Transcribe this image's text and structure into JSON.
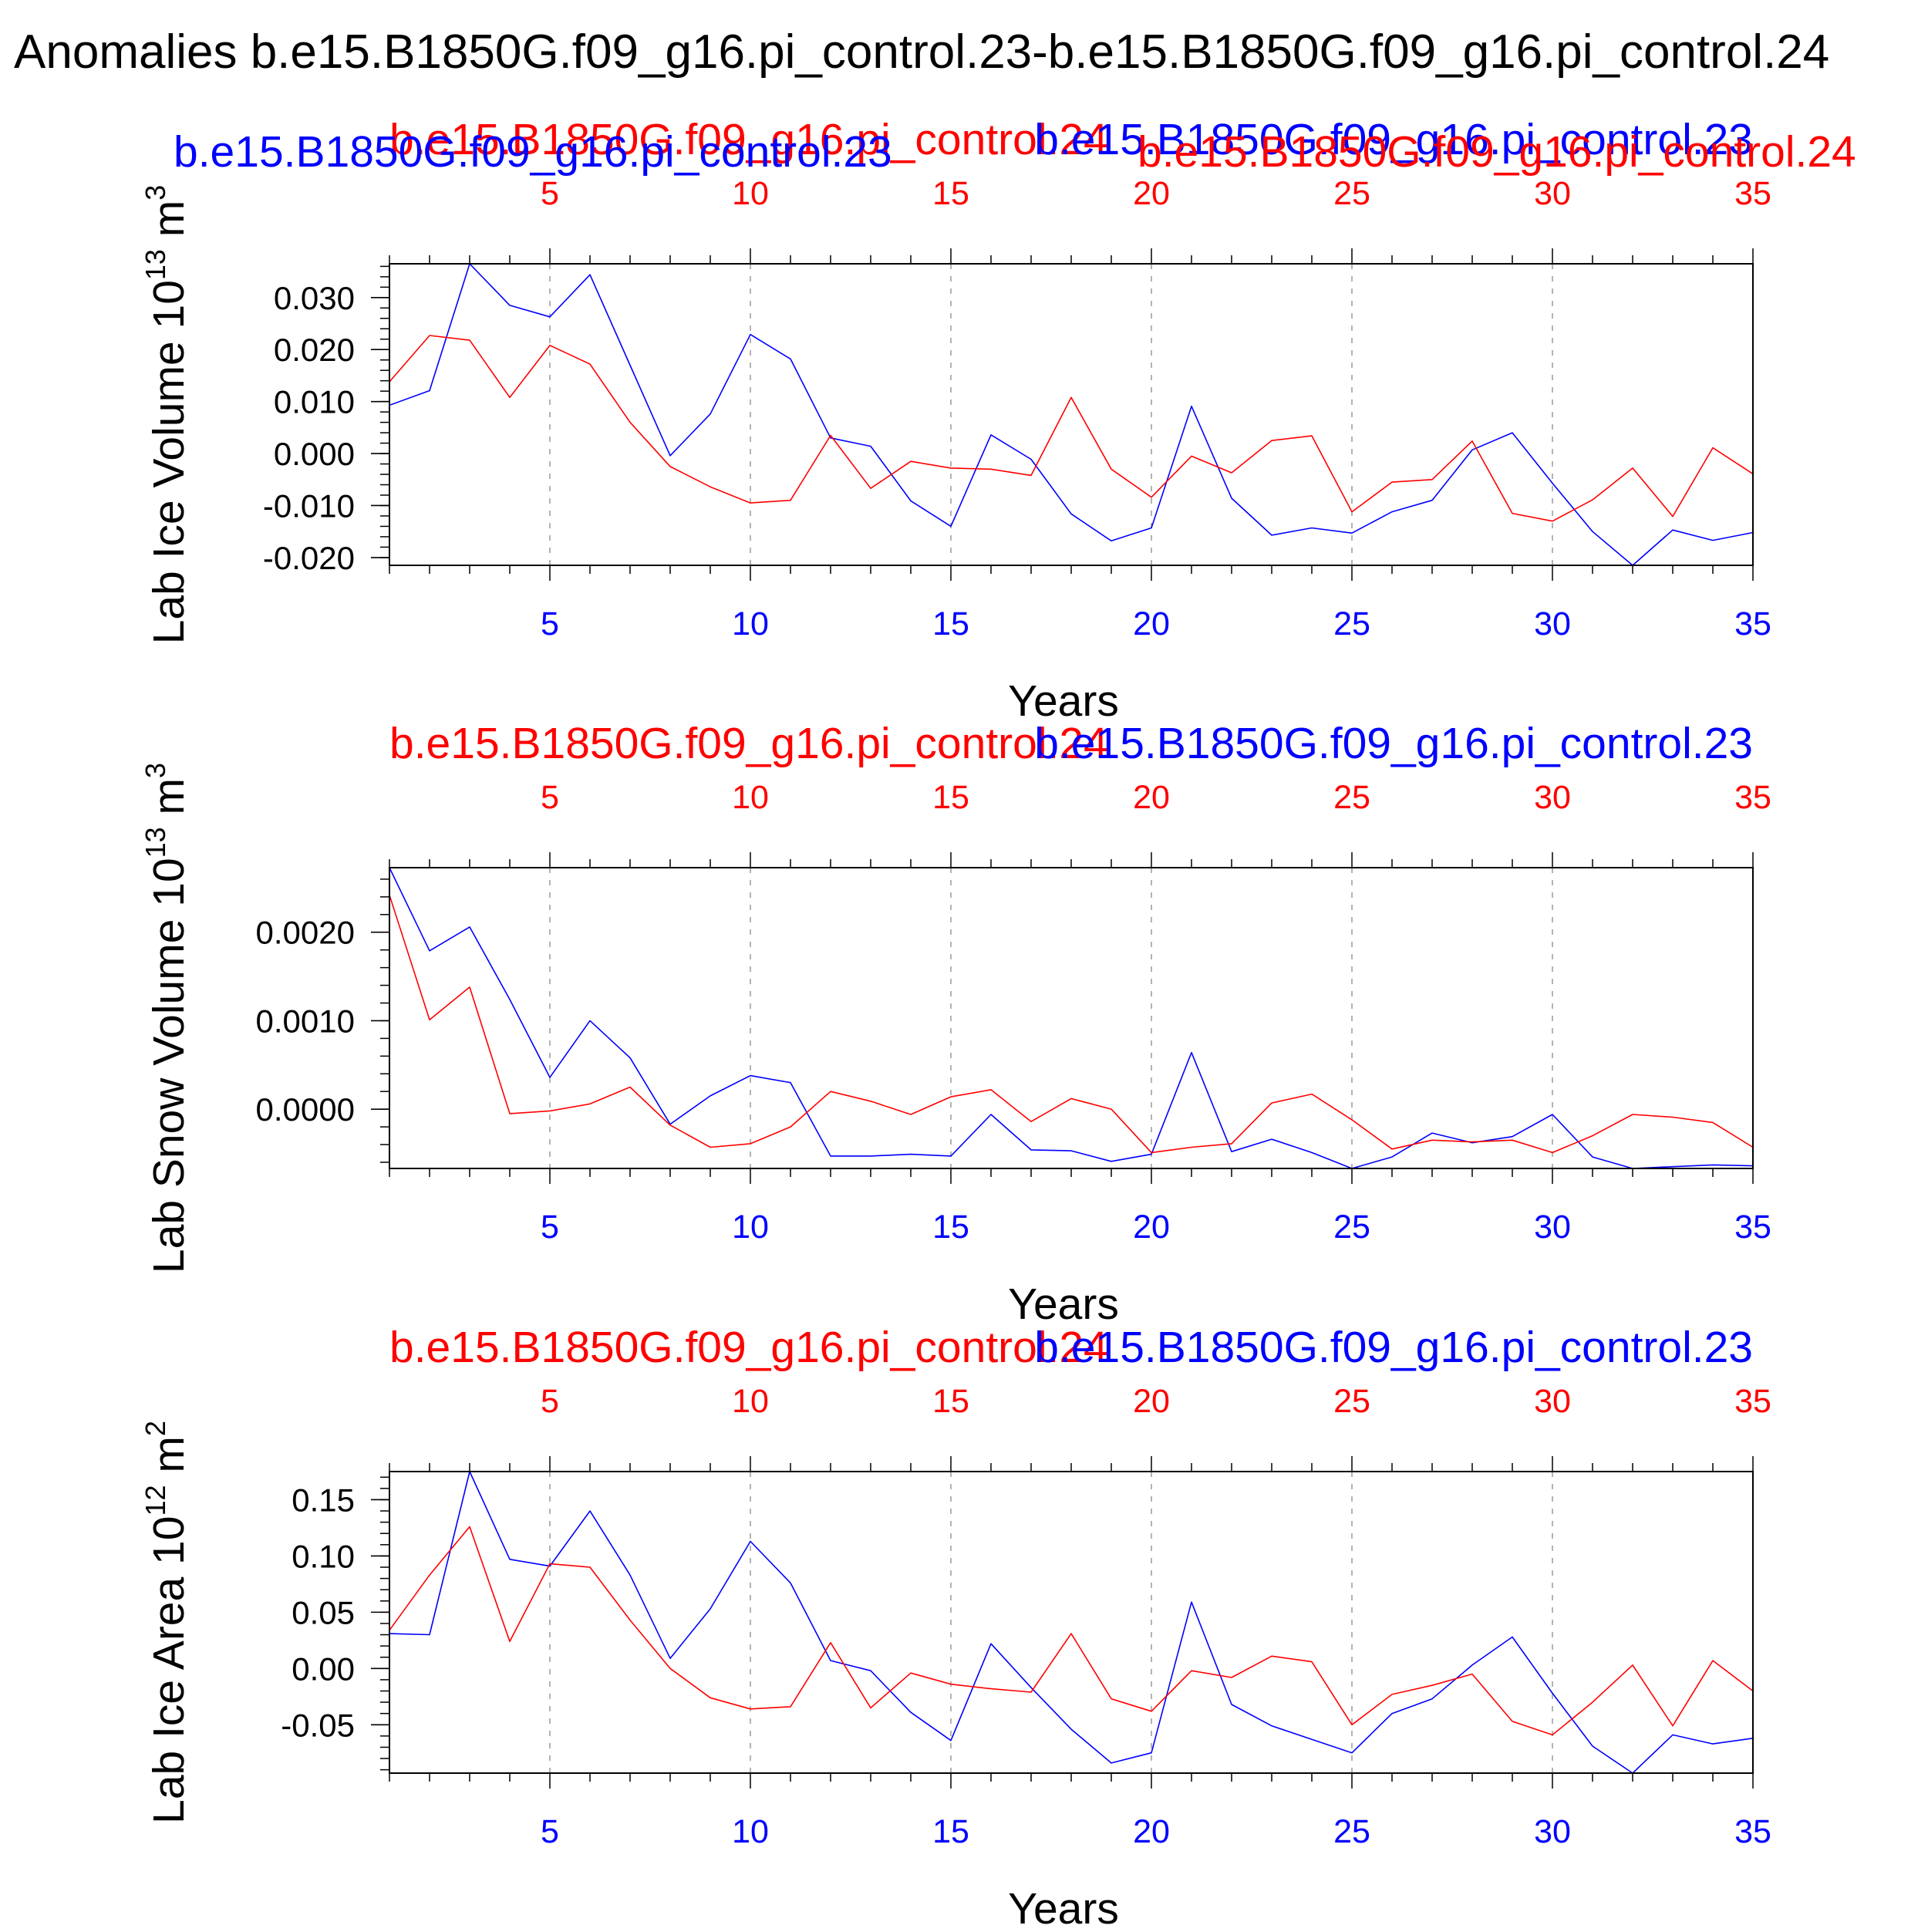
{
  "page_title": "Anomalies b.e15.B1850G.f09_g16.pi_control.23-b.e15.B1850G.f09_g16.pi_control.24",
  "series_colors": {
    "run23": "#0000ff",
    "run24": "#ff0000"
  },
  "chart_data": [
    {
      "type": "line",
      "ylabel": "Lab Ice Volume 10",
      "ylabel_exp": "13",
      "ylabel_unit": " m",
      "ylabel_unit_exp": "3",
      "xlabel": "Years",
      "top_label_left": "b.e15.B1850G.f09_g16.pi_control.24",
      "top_label_right": "b.e15.B1850G.f09_g16.pi_control.23",
      "xlim": [
        1,
        35
      ],
      "ylim": [
        -0.0215,
        0.0365
      ],
      "x_ticks": [
        5,
        10,
        15,
        20,
        25,
        30,
        35
      ],
      "x_tick_labels": [
        "5",
        "10",
        "15",
        "20",
        "25",
        "30",
        "35"
      ],
      "y_ticks": [
        0.03,
        0.02,
        0.01,
        0.0,
        -0.01,
        -0.02
      ],
      "y_tick_labels": [
        "0.030",
        "0.020",
        "0.010",
        "0.000",
        "-0.010",
        "-0.020"
      ],
      "y_minor_step": 0.002,
      "x": [
        1,
        2,
        3,
        4,
        5,
        6,
        7,
        8,
        9,
        10,
        11,
        12,
        13,
        14,
        15,
        16,
        17,
        18,
        19,
        20,
        21,
        22,
        23,
        24,
        25,
        26,
        27,
        28,
        29,
        30,
        31,
        32,
        33,
        34,
        35
      ],
      "series": [
        {
          "name": "b.e15.B1850G.f09_g16.pi_control.23",
          "color": "#0000ff",
          "values": [
            0.0093,
            0.0121,
            0.0365,
            0.0285,
            0.0263,
            0.0344,
            0.017,
            -0.0004,
            0.0076,
            0.0229,
            0.0182,
            0.003,
            0.0014,
            -0.0091,
            -0.014,
            0.0036,
            -0.0011,
            -0.0116,
            -0.0168,
            -0.0143,
            0.0091,
            -0.0086,
            -0.0157,
            -0.0143,
            -0.0153,
            -0.0112,
            -0.009,
            0.0007,
            0.004,
            -0.0057,
            -0.015,
            -0.0215,
            -0.0147,
            -0.0167,
            -0.0152
          ]
        },
        {
          "name": "b.e15.B1850G.f09_g16.pi_control.24",
          "color": "#ff0000",
          "values": [
            0.0138,
            0.0227,
            0.0218,
            0.0108,
            0.0208,
            0.0172,
            0.006,
            -0.0025,
            -0.0064,
            -0.0095,
            -0.009,
            0.0035,
            -0.0067,
            -0.0015,
            -0.0028,
            -0.003,
            -0.0042,
            0.0108,
            -0.003,
            -0.0084,
            -0.0005,
            -0.0037,
            0.0025,
            0.0034,
            -0.0112,
            -0.0055,
            -0.005,
            0.0024,
            -0.0115,
            -0.013,
            -0.0089,
            -0.0028,
            -0.0121,
            0.0011,
            -0.0039
          ]
        }
      ]
    },
    {
      "type": "line",
      "ylabel": "Lab Snow Volume 10",
      "ylabel_exp": "13",
      "ylabel_unit": " m",
      "ylabel_unit_exp": "3",
      "xlabel": "Years",
      "top_label_left": "b.e15.B1850G.f09_g16.pi_control.24",
      "top_label_right": "b.e15.B1850G.f09_g16.pi_control.23",
      "xlim": [
        1,
        35
      ],
      "ylim": [
        -0.00067,
        0.00273
      ],
      "x_ticks": [
        5,
        10,
        15,
        20,
        25,
        30,
        35
      ],
      "x_tick_labels": [
        "5",
        "10",
        "15",
        "20",
        "25",
        "30",
        "35"
      ],
      "y_ticks": [
        0.002,
        0.001,
        0.0
      ],
      "y_tick_labels": [
        "0.0020",
        "0.0010",
        "0.0000"
      ],
      "y_minor_step": 0.0002,
      "x": [
        1,
        2,
        3,
        4,
        5,
        6,
        7,
        8,
        9,
        10,
        11,
        12,
        13,
        14,
        15,
        16,
        17,
        18,
        19,
        20,
        21,
        22,
        23,
        24,
        25,
        26,
        27,
        28,
        29,
        30,
        31,
        32,
        33,
        34,
        35
      ],
      "series": [
        {
          "name": "b.e15.B1850G.f09_g16.pi_control.23",
          "color": "#0000ff",
          "values": [
            0.00273,
            0.00179,
            0.00206,
            0.00124,
            0.00036,
            0.001,
            0.00058,
            -0.00017,
            0.00015,
            0.00038,
            0.0003,
            -0.00053,
            -0.00053,
            -0.00051,
            -0.00053,
            -6e-05,
            -0.00046,
            -0.00047,
            -0.00059,
            -0.00051,
            0.00064,
            -0.00048,
            -0.00034,
            -0.00049,
            -0.00067,
            -0.00054,
            -0.00027,
            -0.00038,
            -0.00031,
            -6e-05,
            -0.00054,
            -0.00067,
            -0.00065,
            -0.00063,
            -0.00064
          ]
        },
        {
          "name": "b.e15.B1850G.f09_g16.pi_control.24",
          "color": "#ff0000",
          "values": [
            0.00242,
            0.00101,
            0.00138,
            -5e-05,
            -2e-05,
            6e-05,
            0.00025,
            -0.00018,
            -0.00043,
            -0.00039,
            -0.0002,
            0.0002,
            9e-05,
            -6e-05,
            0.00014,
            0.00022,
            -0.00014,
            0.00012,
            0.0,
            -0.00049,
            -0.00043,
            -0.00039,
            7e-05,
            0.00017,
            -0.00012,
            -0.00045,
            -0.00035,
            -0.00037,
            -0.00035,
            -0.00049,
            -0.0003,
            -6e-05,
            -9e-05,
            -0.00015,
            -0.00043
          ]
        }
      ]
    },
    {
      "type": "line",
      "ylabel": "Lab Ice Area 10",
      "ylabel_exp": "12",
      "ylabel_unit": " m",
      "ylabel_unit_exp": "2",
      "xlabel": "Years",
      "top_label_left": "b.e15.B1850G.f09_g16.pi_control.24",
      "top_label_right": "b.e15.B1850G.f09_g16.pi_control.23",
      "xlim": [
        1,
        35
      ],
      "ylim": [
        -0.093,
        0.175
      ],
      "x_ticks": [
        5,
        10,
        15,
        20,
        25,
        30,
        35
      ],
      "x_tick_labels": [
        "5",
        "10",
        "15",
        "20",
        "25",
        "30",
        "35"
      ],
      "y_ticks": [
        0.15,
        0.1,
        0.05,
        0.0,
        -0.05
      ],
      "y_tick_labels": [
        "0.15",
        "0.10",
        "0.05",
        "0.00",
        "-0.05"
      ],
      "y_minor_step": 0.01,
      "x": [
        1,
        2,
        3,
        4,
        5,
        6,
        7,
        8,
        9,
        10,
        11,
        12,
        13,
        14,
        15,
        16,
        17,
        18,
        19,
        20,
        21,
        22,
        23,
        24,
        25,
        26,
        27,
        28,
        29,
        30,
        31,
        32,
        33,
        34,
        35
      ],
      "series": [
        {
          "name": "b.e15.B1850G.f09_g16.pi_control.23",
          "color": "#0000ff",
          "values": [
            0.031,
            0.03,
            0.175,
            0.097,
            0.091,
            0.14,
            0.083,
            0.009,
            0.053,
            0.113,
            0.076,
            0.007,
            -0.002,
            -0.039,
            -0.064,
            0.022,
            -0.017,
            -0.054,
            -0.084,
            -0.075,
            0.059,
            -0.032,
            -0.051,
            -0.063,
            -0.075,
            -0.04,
            -0.027,
            0.003,
            0.028,
            -0.022,
            -0.069,
            -0.093,
            -0.059,
            -0.067,
            -0.062
          ]
        },
        {
          "name": "b.e15.B1850G.f09_g16.pi_control.24",
          "color": "#ff0000",
          "values": [
            0.034,
            0.083,
            0.126,
            0.024,
            0.093,
            0.09,
            0.043,
            0.0,
            -0.026,
            -0.036,
            -0.034,
            0.023,
            -0.035,
            -0.004,
            -0.014,
            -0.018,
            -0.021,
            0.031,
            -0.027,
            -0.038,
            -0.002,
            -0.008,
            0.011,
            0.006,
            -0.05,
            -0.023,
            -0.015,
            -0.005,
            -0.047,
            -0.059,
            -0.03,
            0.003,
            -0.051,
            0.007,
            -0.02
          ]
        }
      ]
    }
  ]
}
